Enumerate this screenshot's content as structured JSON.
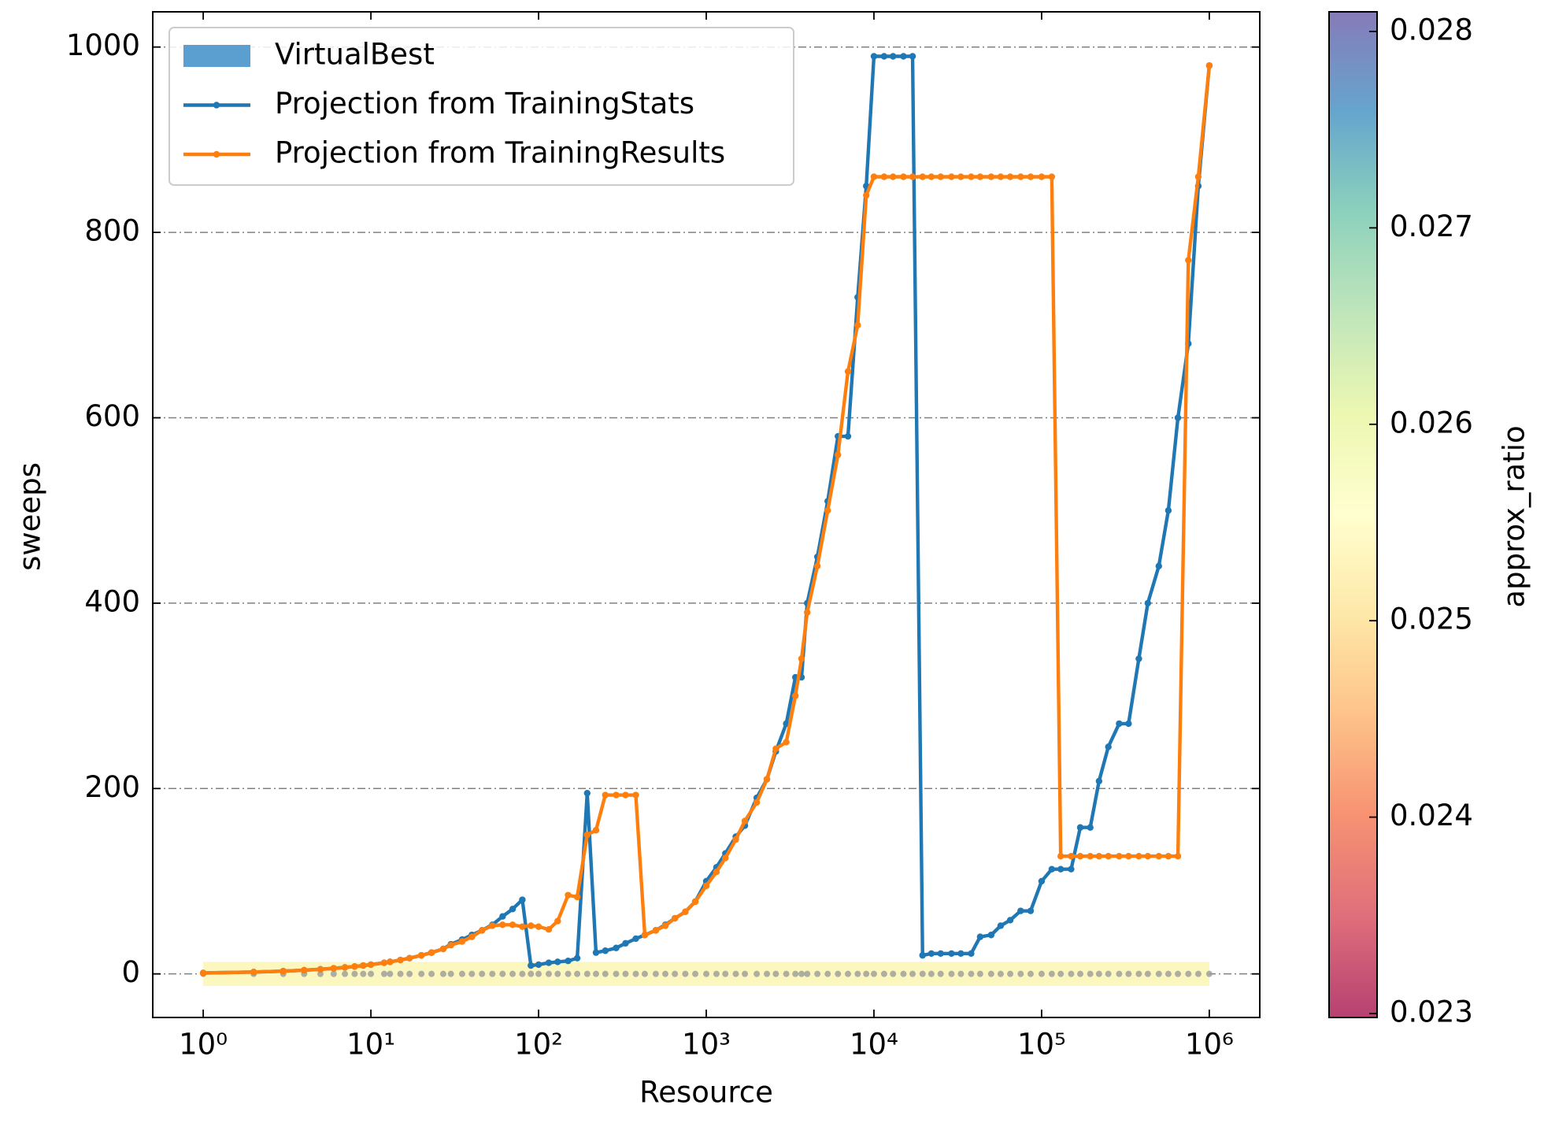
{
  "chart_data": {
    "type": "line",
    "x_label": "Resource",
    "y_label": "sweeps",
    "xscale": "log",
    "xlim": [
      0.5,
      2000000
    ],
    "ylim": [
      -47,
      1038
    ],
    "xticks": [
      {
        "value": 1,
        "label": "10⁰"
      },
      {
        "value": 10,
        "label": "10¹"
      },
      {
        "value": 100,
        "label": "10²"
      },
      {
        "value": 1000,
        "label": "10³"
      },
      {
        "value": 10000,
        "label": "10⁴"
      },
      {
        "value": 100000,
        "label": "10⁵"
      },
      {
        "value": 1000000,
        "label": "10⁶"
      }
    ],
    "yticks": [
      0,
      200,
      400,
      600,
      800,
      1000
    ],
    "grid": true,
    "legend": "upper left",
    "x": [
      1,
      2,
      3,
      4,
      5,
      6,
      7,
      8,
      9,
      10,
      12,
      13,
      15,
      17,
      20,
      23,
      27,
      30,
      35,
      40,
      46,
      53,
      61,
      70,
      80,
      90,
      100,
      115,
      130,
      150,
      170,
      195,
      220,
      250,
      290,
      330,
      380,
      430,
      500,
      570,
      650,
      750,
      860,
      1000,
      1150,
      1300,
      1500,
      1700,
      2000,
      2300,
      2600,
      3000,
      3400,
      3700,
      4000,
      4600,
      5300,
      6100,
      7000,
      8000,
      9000,
      10000,
      11500,
      13000,
      15000,
      17000,
      19500,
      22000,
      25000,
      29000,
      33000,
      38000,
      43000,
      50000,
      57000,
      65000,
      75000,
      86000,
      100000,
      115000,
      130000,
      150000,
      170000,
      195000,
      220000,
      250000,
      290000,
      330000,
      380000,
      430000,
      500000,
      570000,
      650000,
      750000,
      860000,
      1000000
    ],
    "series": [
      {
        "name": "VirtualBest",
        "color": "#5a9fcf",
        "marker_color": "#9a9a9a",
        "band": [
          -13,
          13
        ],
        "band_color": "#fbf7bf",
        "values": [
          0,
          0,
          0,
          0,
          0,
          0,
          0,
          0,
          0,
          0,
          0,
          0,
          0,
          0,
          0,
          0,
          0,
          0,
          0,
          0,
          0,
          0,
          0,
          0,
          0,
          0,
          0,
          0,
          0,
          0,
          0,
          0,
          0,
          0,
          0,
          0,
          0,
          0,
          0,
          0,
          0,
          0,
          0,
          0,
          0,
          0,
          0,
          0,
          0,
          0,
          0,
          0,
          0,
          0,
          0,
          0,
          0,
          0,
          0,
          0,
          0,
          0,
          0,
          0,
          0,
          0,
          0,
          0,
          0,
          0,
          0,
          0,
          0,
          0,
          0,
          0,
          0,
          0,
          0,
          0,
          0,
          0,
          0,
          0,
          0,
          0,
          0,
          0,
          0,
          0,
          0,
          0,
          0,
          0,
          0,
          0
        ]
      },
      {
        "name": "Projection from TrainingStats",
        "color": "#1f77b4",
        "values": [
          1,
          2,
          3,
          4,
          5,
          6,
          7,
          8,
          9,
          10,
          12,
          13,
          15,
          17,
          20,
          23,
          27,
          32,
          37,
          42,
          47,
          53,
          62,
          70,
          80,
          9,
          10,
          12,
          13,
          14,
          17,
          195,
          23,
          25,
          28,
          33,
          38,
          42,
          47,
          53,
          60,
          67,
          78,
          100,
          115,
          130,
          148,
          160,
          190,
          210,
          240,
          270,
          320,
          320,
          400,
          450,
          510,
          580,
          580,
          730,
          850,
          990,
          990,
          990,
          990,
          990,
          20,
          22,
          22,
          22,
          22,
          22,
          40,
          42,
          52,
          58,
          68,
          68,
          100,
          113,
          113,
          113,
          158,
          158,
          208,
          245,
          270,
          270,
          340,
          400,
          440,
          500,
          600,
          680,
          850,
          980
        ]
      },
      {
        "name": "Projection from TrainingResults",
        "color": "#ff7f0e",
        "values": [
          1,
          2,
          3,
          4,
          5,
          6,
          7,
          8,
          9,
          10,
          12,
          13,
          15,
          17,
          20,
          23,
          27,
          31,
          35,
          40,
          47,
          52,
          53,
          53,
          51,
          52,
          51,
          48,
          57,
          85,
          83,
          150,
          155,
          193,
          193,
          193,
          193,
          42,
          47,
          52,
          60,
          67,
          78,
          95,
          110,
          125,
          145,
          165,
          185,
          210,
          243,
          250,
          300,
          340,
          390,
          440,
          500,
          560,
          650,
          700,
          840,
          860,
          860,
          860,
          860,
          860,
          860,
          860,
          860,
          860,
          860,
          860,
          860,
          860,
          860,
          860,
          860,
          860,
          860,
          860,
          127,
          127,
          127,
          127,
          127,
          127,
          127,
          127,
          127,
          127,
          127,
          127,
          127,
          770,
          860,
          980
        ]
      }
    ],
    "colorbar": {
      "label": "approx_ratio",
      "lim": [
        0.02298,
        0.0281
      ],
      "ticks": [
        0.023,
        0.024,
        0.025,
        0.026,
        0.027,
        0.028
      ],
      "colormap": [
        "#9e0142",
        "#d53e4f",
        "#f46d43",
        "#fdae61",
        "#fee08b",
        "#ffffbf",
        "#e6f598",
        "#abdda4",
        "#66c2a5",
        "#3288bd",
        "#5e4fa2"
      ]
    }
  }
}
